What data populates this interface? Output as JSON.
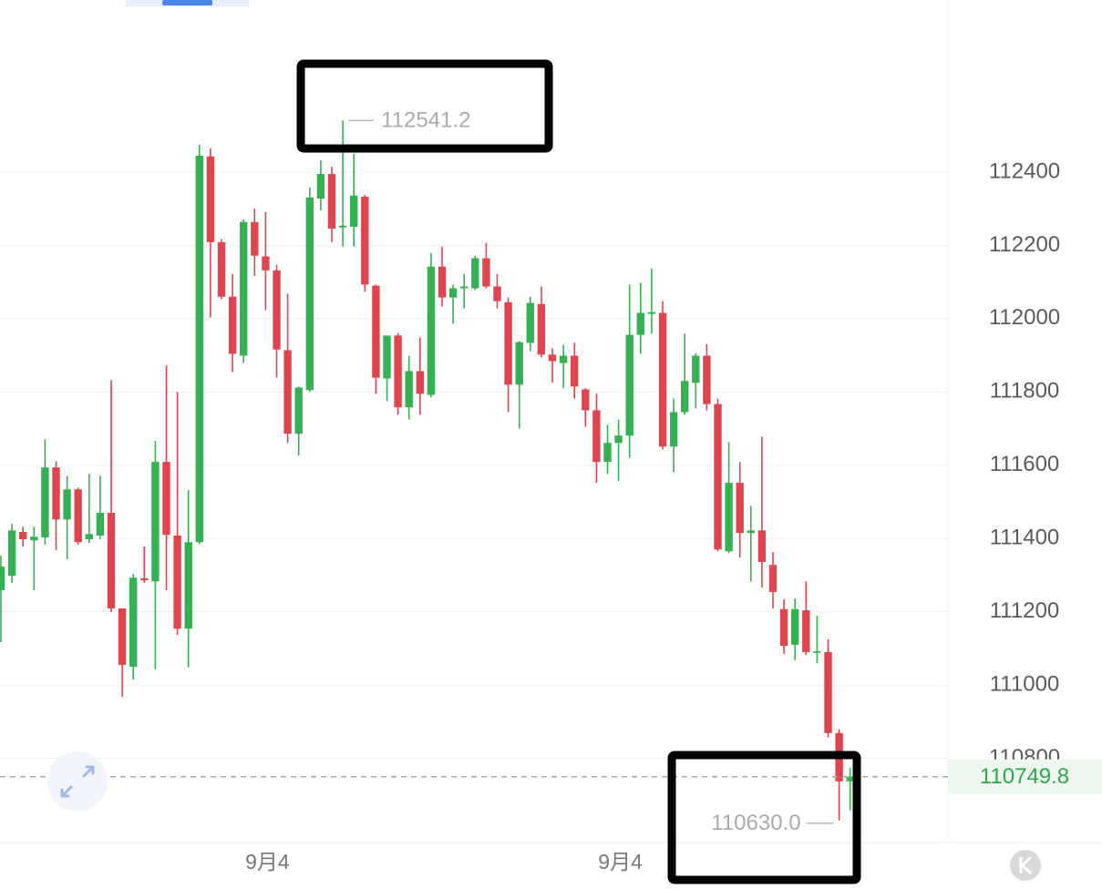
{
  "chart_data": {
    "type": "candlestick",
    "categories": [
      null,
      null,
      null,
      null,
      null,
      null,
      null,
      null,
      null,
      null,
      null,
      null,
      null,
      null,
      null,
      null,
      null,
      null,
      null,
      null,
      null,
      null,
      null,
      null,
      "9月4",
      null,
      null,
      null,
      null,
      null,
      null,
      null,
      null,
      null,
      null,
      null,
      null,
      null,
      null,
      null,
      null,
      null,
      null,
      null,
      null,
      null,
      null,
      null,
      null,
      null,
      null,
      null,
      null,
      null,
      null,
      null,
      "9月4",
      null,
      null,
      null,
      null,
      null,
      null,
      null,
      null,
      null,
      null,
      null,
      null,
      null,
      null,
      null,
      null,
      null,
      null,
      null,
      null,
      null
    ],
    "open": [
      111259,
      111298,
      111418,
      111395,
      111403,
      111594,
      111452,
      111534,
      111398,
      111408,
      111470,
      111209,
      111050,
      111291,
      111283,
      111609,
      111408,
      111154,
      111390,
      112443,
      112209,
      112060,
      111899,
      112264,
      112170,
      112132,
      111914,
      111686,
      111805,
      112328,
      112395,
      112249,
      112251,
      112333,
      112090,
      111837,
      111954,
      111758,
      111857,
      111792,
      112142,
      112058,
      112083,
      112083,
      112165,
      112088,
      112045,
      111820,
      111934,
      112040,
      111902,
      111879,
      111899,
      111807,
      111750,
      111609,
      111661,
      111681,
      111956,
      112013,
      112016,
      111651,
      111745,
      111825,
      111899,
      111767,
      111365,
      111552,
      111415,
      111422,
      111328,
      111207,
      111110,
      111204,
      111090,
      111090,
      110869,
      110737
    ],
    "high": [
      111353,
      111440,
      111432,
      111432,
      111671,
      111611,
      111571,
      111539,
      111576,
      111571,
      111832,
      111209,
      111303,
      111378,
      111666,
      111872,
      111800,
      111532,
      112475,
      112465,
      112217,
      112122,
      112271,
      112301,
      112291,
      112147,
      112068,
      111815,
      112358,
      112433,
      112415,
      112541.2,
      112450,
      112338,
      112093,
      111954,
      111961,
      111899,
      111949,
      112179,
      112197,
      112093,
      112122,
      112172,
      112207,
      112122,
      112058,
      111939,
      112060,
      112088,
      111919,
      111929,
      111934,
      111810,
      111795,
      111710,
      111725,
      112093,
      112098,
      112137,
      112048,
      111782,
      111959,
      111906,
      111931,
      111782,
      111663,
      111609,
      111489,
      111678,
      111363,
      111234,
      111236,
      111283,
      111189,
      111125,
      110879,
      110775
    ],
    "low": [
      111117,
      111279,
      111378,
      111259,
      111383,
      111368,
      111343,
      111383,
      111388,
      111398,
      111199,
      110968,
      111015,
      111279,
      111043,
      111259,
      111137,
      111048,
      111385,
      112003,
      112053,
      111854,
      111879,
      112117,
      112023,
      111839,
      111661,
      111626,
      111800,
      112296,
      112209,
      112197,
      112197,
      112073,
      111795,
      111775,
      111738,
      111725,
      111738,
      111785,
      112033,
      111986,
      112028,
      112078,
      112083,
      112028,
      111745,
      111700,
      111911,
      111894,
      111825,
      111810,
      111782,
      111705,
      111552,
      111576,
      111557,
      111621,
      111904,
      111959,
      111643,
      111581,
      111738,
      111755,
      111750,
      111365,
      111360,
      111348,
      111283,
      111266,
      111209,
      111085,
      111068,
      111082,
      111060,
      110857,
      110630,
      110658
    ],
    "close": [
      111323,
      111422,
      111398,
      111405,
      111594,
      111452,
      111534,
      111390,
      111412,
      111470,
      111209,
      111055,
      111293,
      111286,
      111609,
      111410,
      111154,
      111390,
      112445,
      112209,
      112060,
      111904,
      112264,
      112172,
      112132,
      111916,
      111686,
      111812,
      112331,
      112395,
      112246,
      112254,
      112336,
      112093,
      111839,
      111954,
      111758,
      111857,
      111795,
      112142,
      112058,
      112083,
      112088,
      112165,
      112088,
      112048,
      111820,
      111936,
      112043,
      111902,
      111884,
      111899,
      111815,
      111750,
      111609,
      111661,
      111681,
      111956,
      112016,
      112018,
      111651,
      111745,
      111830,
      111899,
      111767,
      111370,
      111552,
      111415,
      111422,
      111336,
      111254,
      111107,
      111207,
      111090,
      111092,
      110869,
      110737,
      110749.8
    ],
    "up_color": "#35b052",
    "down_color": "#e0454f",
    "min_label": "110630.0",
    "ylim": [
      110570,
      112870
    ],
    "yticks": [
      110800,
      111000,
      111200,
      111400,
      111600,
      111800,
      112000,
      112200,
      112400
    ],
    "grid": true
  }
}
